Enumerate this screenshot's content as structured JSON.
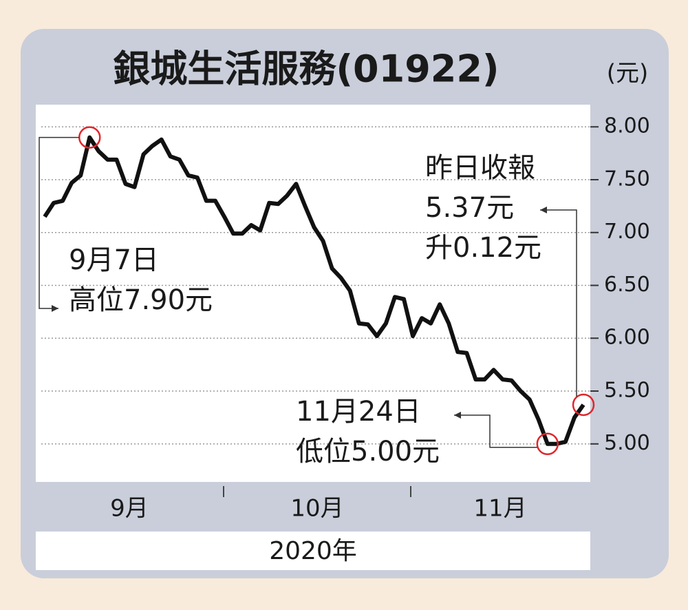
{
  "chart_data": {
    "type": "line",
    "title": "銀城生活服務(01922)",
    "unit_label": "(元)",
    "xlabel": "2020年",
    "x_labels": [
      "9月",
      "10月",
      "11月"
    ],
    "values": [
      7.15,
      7.28,
      7.3,
      7.47,
      7.54,
      7.9,
      7.77,
      7.69,
      7.69,
      7.46,
      7.43,
      7.74,
      7.82,
      7.88,
      7.72,
      7.69,
      7.54,
      7.52,
      7.3,
      7.3,
      7.15,
      6.99,
      6.99,
      7.07,
      7.02,
      7.28,
      7.27,
      7.35,
      7.46,
      7.25,
      7.05,
      6.92,
      6.66,
      6.57,
      6.45,
      6.14,
      6.13,
      6.02,
      6.14,
      6.39,
      6.37,
      6.02,
      6.19,
      6.14,
      6.32,
      6.14,
      5.87,
      5.86,
      5.61,
      5.61,
      5.7,
      5.61,
      5.6,
      5.5,
      5.42,
      5.23,
      5.0,
      5.0,
      5.02,
      5.25,
      5.37
    ],
    "color": "#111111",
    "highlight_color": "#e0262b",
    "ylim": [
      4.64,
      8.21
    ],
    "yticks": [
      {
        "value": 5,
        "label": "5.00"
      },
      {
        "value": 5.5,
        "label": "5.50"
      },
      {
        "value": 6,
        "label": "6.00"
      },
      {
        "value": 6.5,
        "label": "6.50"
      },
      {
        "value": 7,
        "label": "7.00"
      },
      {
        "value": 7.5,
        "label": "7.50"
      },
      {
        "value": 8,
        "label": "8.00"
      }
    ],
    "grid": true,
    "annotations": [
      {
        "index": 5,
        "lines": [
          "9月7日",
          "高位7.90元"
        ]
      },
      {
        "index": 60,
        "lines": [
          "昨日收報",
          "5.37元",
          "升0.12元"
        ]
      },
      {
        "index": 56,
        "lines": [
          "11月24日",
          "低位5.00元"
        ]
      }
    ]
  }
}
